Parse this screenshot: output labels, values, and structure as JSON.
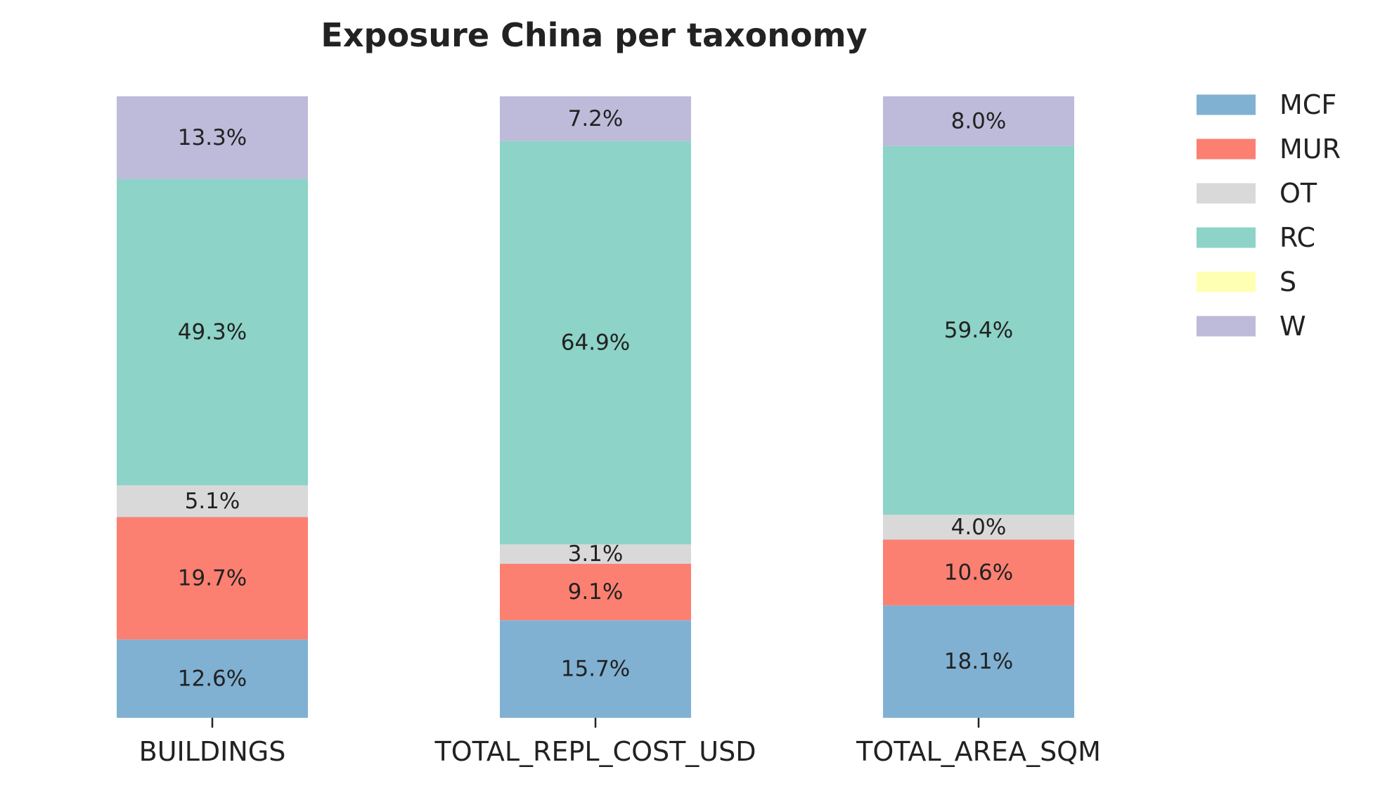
{
  "chart_data": {
    "type": "bar",
    "stacked": true,
    "normalized": true,
    "title": "Exposure China per taxonomy",
    "xlabel": "",
    "ylabel": "",
    "ylim": [
      0,
      1
    ],
    "grid": false,
    "legend_position": "top-right (outside plot)",
    "categories": [
      "BUILDINGS",
      "TOTAL_REPL_COST_USD",
      "TOTAL_AREA_SQM"
    ],
    "series": [
      {
        "name": "MCF",
        "color": "#80b1d3",
        "values": [
          0.126,
          0.157,
          0.181
        ],
        "labels": [
          "12.6%",
          "15.7%",
          "18.1%"
        ]
      },
      {
        "name": "MUR",
        "color": "#fb8072",
        "values": [
          0.197,
          0.091,
          0.106
        ],
        "labels": [
          "19.7%",
          "9.1%",
          "10.6%"
        ]
      },
      {
        "name": "OT",
        "color": "#d9d9d9",
        "values": [
          0.051,
          0.031,
          0.04
        ],
        "labels": [
          "5.1%",
          "3.1%",
          "4.0%"
        ]
      },
      {
        "name": "RC",
        "color": "#8dd3c7",
        "values": [
          0.493,
          0.649,
          0.594
        ],
        "labels": [
          "49.3%",
          "64.9%",
          "59.4%"
        ]
      },
      {
        "name": "S",
        "color": "#ffffb3",
        "values": [
          0.0,
          0.0,
          0.0
        ],
        "labels": [
          "",
          "",
          ""
        ]
      },
      {
        "name": "W",
        "color": "#bebada",
        "values": [
          0.133,
          0.072,
          0.08
        ],
        "labels": [
          "13.3%",
          "7.2%",
          "8.0%"
        ]
      }
    ]
  }
}
